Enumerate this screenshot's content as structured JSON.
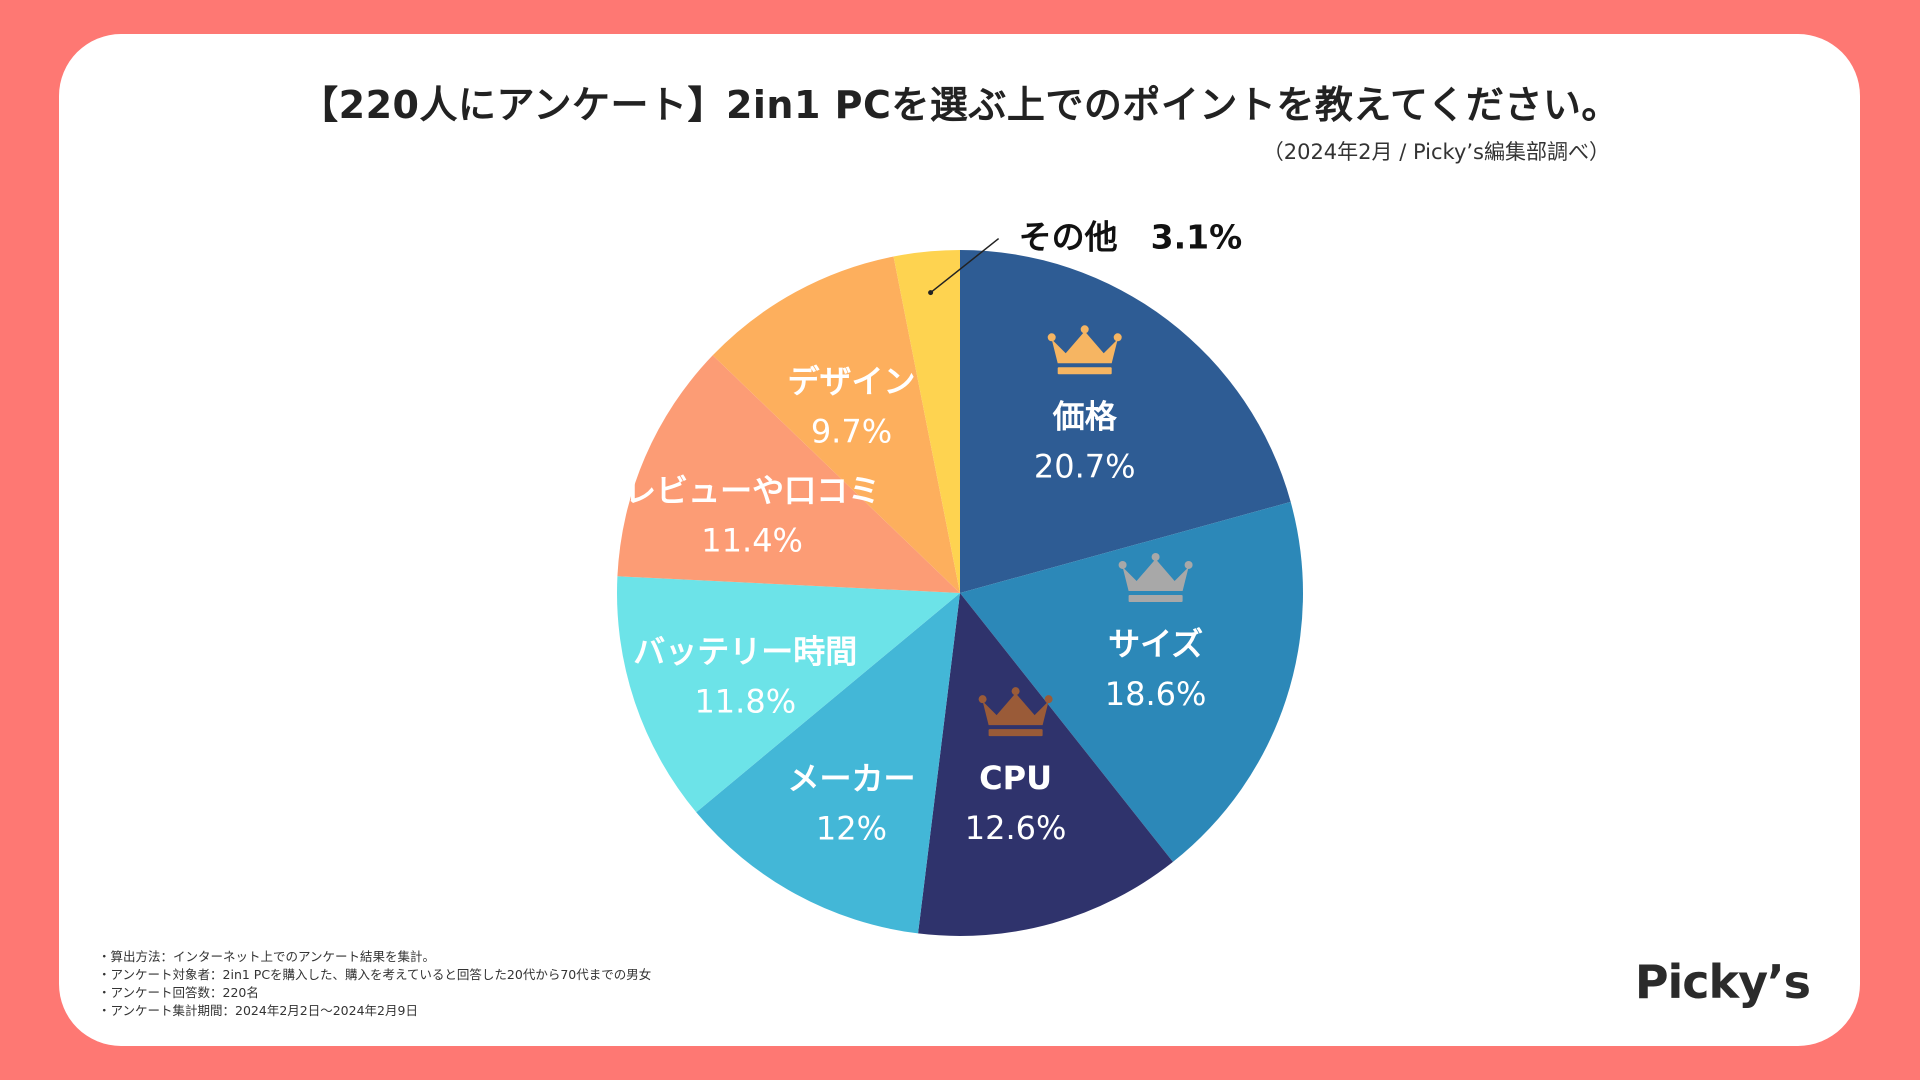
{
  "title": "【220人にアンケート】2in1 PCを選ぶ上でのポイントを教えてください。",
  "source": "（2024年2月 / Picky’s編集部調べ）",
  "brand": "Picky’s",
  "notes": [
    "算出方法：インターネット上でのアンケート結果を集計。",
    "アンケート対象者：2in1 PCを購入した、購入を考えていると回答した20代から70代までの男女",
    "アンケート回答数：220名",
    "アンケート集計期間：2024年2月2日〜2024年2月9日"
  ],
  "chart_data": {
    "type": "pie",
    "title": "【220人にアンケート】2in1 PCを選ぶ上でのポイントを教えてください。",
    "slices": [
      {
        "label": "価格",
        "value": 20.7,
        "pct_text": "20.7%",
        "color": "#2e5c94",
        "rank": 1,
        "crown_color": "#f6b562"
      },
      {
        "label": "サイズ",
        "value": 18.6,
        "pct_text": "18.6%",
        "color": "#2c88b8",
        "rank": 2,
        "crown_color": "#a8a8a8"
      },
      {
        "label": "CPU",
        "value": 12.6,
        "pct_text": "12.6%",
        "color": "#2f336c",
        "rank": 3,
        "crown_color": "#9a5b38"
      },
      {
        "label": "メーカー",
        "value": 12.0,
        "pct_text": "12%",
        "color": "#43b7d7",
        "rank": null,
        "crown_color": null
      },
      {
        "label": "バッテリー時間",
        "value": 11.8,
        "pct_text": "11.8%",
        "color": "#6ce3e8",
        "rank": null,
        "crown_color": null
      },
      {
        "label": "レビューや口コミ",
        "value": 11.4,
        "pct_text": "11.4%",
        "color": "#fc9c75",
        "rank": null,
        "crown_color": null
      },
      {
        "label": "デザイン",
        "value": 9.7,
        "pct_text": "9.7%",
        "color": "#fdaf5d",
        "rank": null,
        "crown_color": null
      },
      {
        "label": "その他",
        "value": 3.1,
        "pct_text": "3.1%",
        "color": "#fed350",
        "rank": null,
        "crown_color": null,
        "outside": true
      }
    ]
  }
}
